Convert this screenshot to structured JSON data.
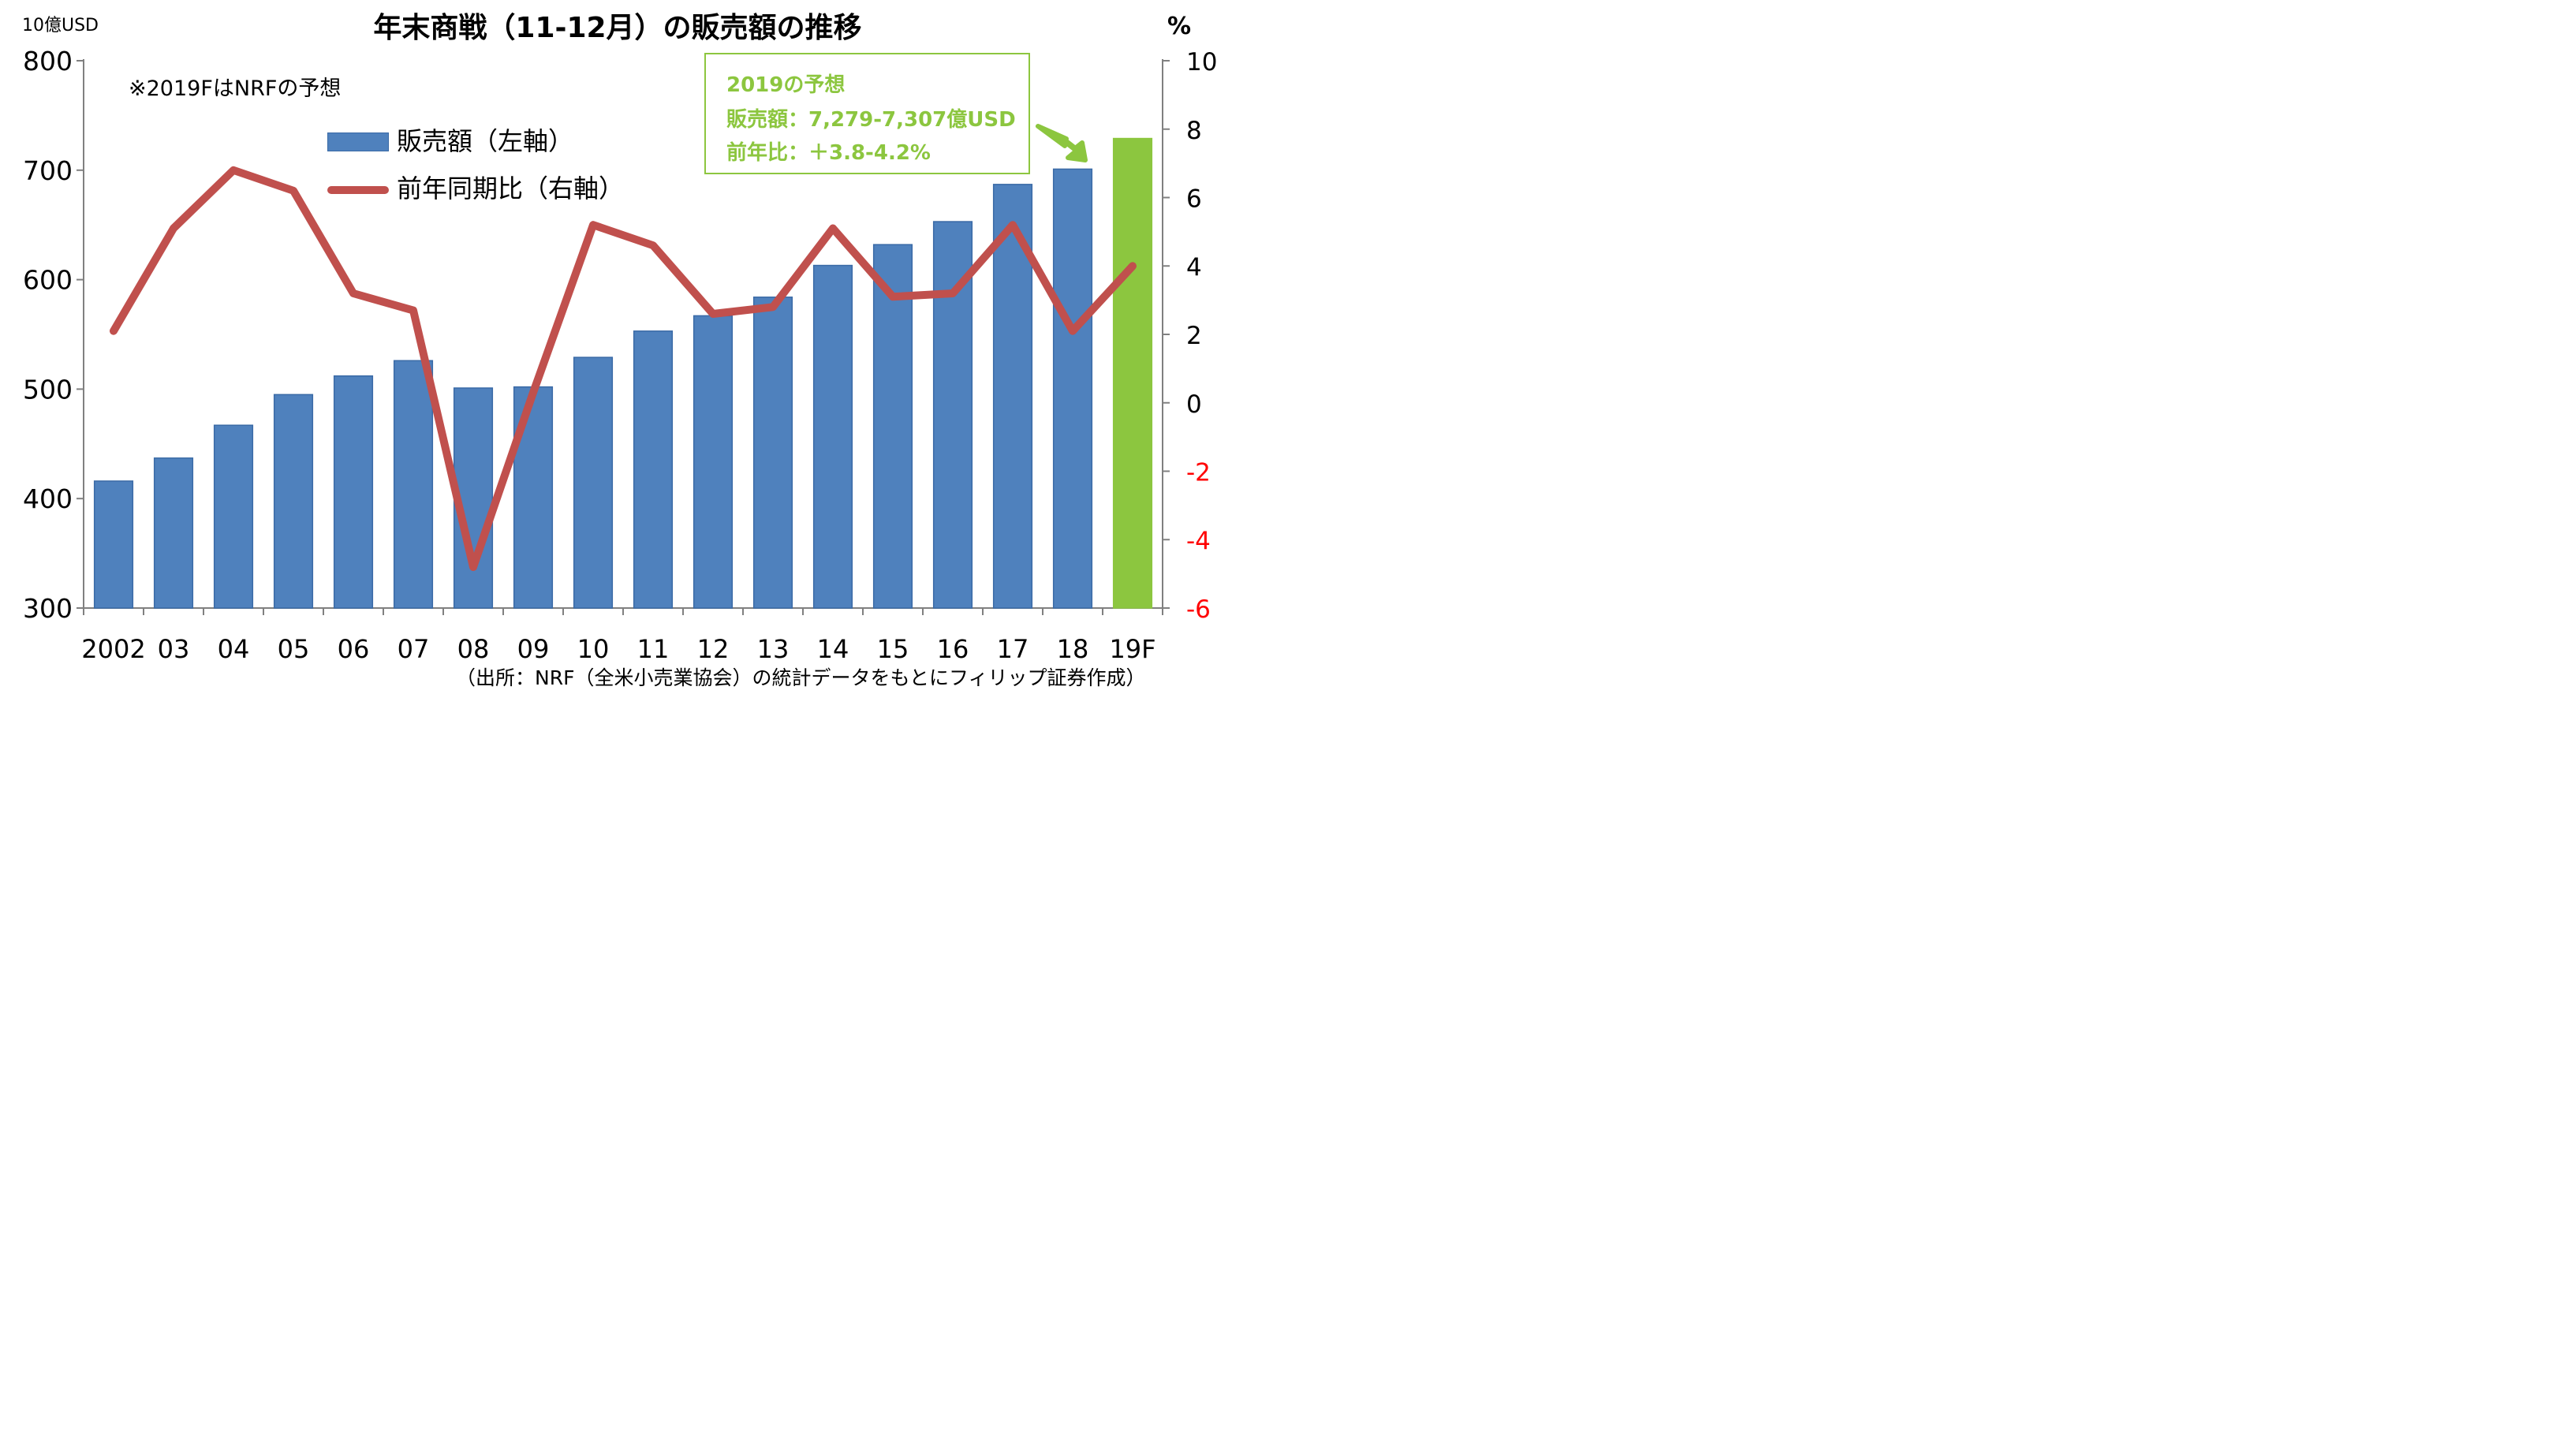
{
  "chart_data": {
    "type": "bar+line",
    "title": "年末商戦（11-12月）の販売額の推移",
    "y_left_unit": "10億USD",
    "y_right_unit": "%",
    "note": "※2019FはNRFの予想",
    "source": "（出所：NRF（全米小売業協会）の統計データをもとにフィリップ証券作成）",
    "categories": [
      "2002",
      "03",
      "04",
      "05",
      "06",
      "07",
      "08",
      "09",
      "10",
      "11",
      "12",
      "13",
      "14",
      "15",
      "16",
      "17",
      "18",
      "19F"
    ],
    "series": [
      {
        "name": "販売額（左軸）",
        "type": "bar",
        "axis": "left",
        "color": "#4f81bd",
        "highlight_color": "#8cc63f",
        "values": [
          416,
          437,
          467,
          495,
          512,
          526,
          501,
          502,
          529,
          553,
          567,
          584,
          613,
          632,
          653,
          687,
          701,
          729
        ]
      },
      {
        "name": "前年同期比（右軸）",
        "type": "line",
        "axis": "right",
        "color": "#c0504d",
        "values": [
          2.1,
          5.1,
          6.8,
          6.2,
          3.2,
          2.7,
          -4.8,
          0.3,
          5.2,
          4.6,
          2.6,
          2.8,
          5.1,
          3.1,
          3.2,
          5.2,
          2.1,
          4.0
        ]
      }
    ],
    "y_left": {
      "min": 300,
      "max": 800,
      "ticks": [
        300,
        400,
        500,
        600,
        700,
        800
      ]
    },
    "y_right": {
      "min": -6,
      "max": 10,
      "ticks": [
        -6,
        -4,
        -2,
        0,
        2,
        4,
        6,
        8,
        10
      ],
      "negative_tick_color": "#ff0000"
    },
    "grid": false,
    "legend_position": "top-left",
    "forecast_box": {
      "line1": "2019の予想",
      "line2": "販売額：7,279-7,307億USD",
      "line3": "前年比：＋3.8-4.2%",
      "color": "#8cc63f"
    }
  }
}
